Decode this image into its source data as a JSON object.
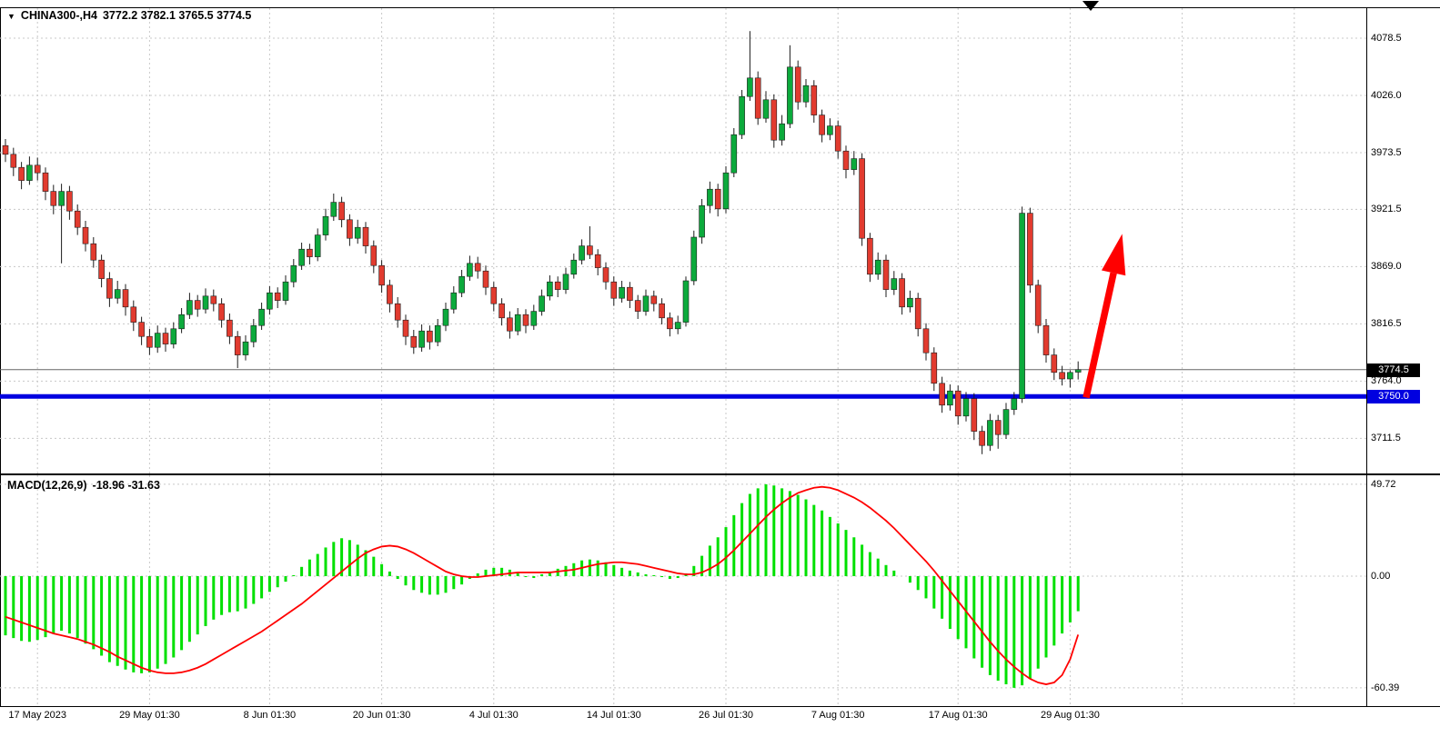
{
  "colors": {
    "background": "#ffffff",
    "grid": "#c8c8c8",
    "frame": "#000000",
    "candle_up": "#0caa3c",
    "candle_down": "#e23b2f",
    "wick": "#1c1c1c",
    "macd_histogram": "#00e000",
    "macd_signal": "#ff0000",
    "hline_blue": "#0000e0",
    "current_price_line": "#666666",
    "arrow": "#ff0000",
    "axis_text": "#000000",
    "current_badge_bg": "#000000",
    "line_badge_bg": "#0000e0"
  },
  "header": {
    "marker": "▼",
    "symbol_period": "CHINA300-,H4",
    "ohlc_text": "3772.2 3782.1 3765.5 3774.5"
  },
  "indicator_label": {
    "name": "MACD(12,26,9)",
    "values": "-18.96 -31.63"
  },
  "price_axis": {
    "current_badge": "3774.5",
    "line_badge": "3750.0"
  },
  "chart_data": {
    "type": "candlestick",
    "symbol": "CHINA300-",
    "timeframe": "H4",
    "current_ohlc": {
      "open": 3772.2,
      "high": 3782.1,
      "low": 3765.5,
      "close": 3774.5
    },
    "current_price": 3774.5,
    "support_line_price": 3750.0,
    "price_ticks": [
      4078.5,
      4026.0,
      3973.5,
      3921.5,
      3869.0,
      3816.5,
      3764.0,
      3711.5
    ],
    "grid_bars": [
      4,
      18,
      33,
      47,
      61,
      76,
      90,
      104,
      119,
      133,
      147,
      161
    ],
    "time_labels": [
      {
        "bar": 4,
        "text": "17 May 2023"
      },
      {
        "bar": 18,
        "text": "29 May 01:30"
      },
      {
        "bar": 33,
        "text": "8 Jun 01:30"
      },
      {
        "bar": 47,
        "text": "20 Jun 01:30"
      },
      {
        "bar": 61,
        "text": "4 Jul 01:30"
      },
      {
        "bar": 76,
        "text": "14 Jul 01:30"
      },
      {
        "bar": 90,
        "text": "26 Jul 01:30"
      },
      {
        "bar": 104,
        "text": "7 Aug 01:30"
      },
      {
        "bar": 119,
        "text": "17 Aug 01:30"
      },
      {
        "bar": 133,
        "text": "29 Aug 01:30"
      }
    ],
    "arrow": {
      "from": {
        "bar": 135,
        "price": 3749
      },
      "to": {
        "bar": 139.5,
        "price": 3899
      }
    },
    "candles": [
      [
        3980,
        3986,
        3965,
        3972
      ],
      [
        3972,
        3978,
        3952,
        3960
      ],
      [
        3960,
        3965,
        3940,
        3948
      ],
      [
        3948,
        3970,
        3944,
        3962
      ],
      [
        3962,
        3969,
        3948,
        3955
      ],
      [
        3955,
        3960,
        3930,
        3938
      ],
      [
        3938,
        3944,
        3917,
        3925
      ],
      [
        3925,
        3945,
        3872,
        3938
      ],
      [
        3938,
        3943,
        3912,
        3920
      ],
      [
        3920,
        3926,
        3898,
        3905
      ],
      [
        3905,
        3911,
        3883,
        3890
      ],
      [
        3890,
        3896,
        3868,
        3875
      ],
      [
        3875,
        3880,
        3850,
        3858
      ],
      [
        3858,
        3864,
        3832,
        3840
      ],
      [
        3840,
        3856,
        3835,
        3848
      ],
      [
        3848,
        3853,
        3824,
        3832
      ],
      [
        3832,
        3838,
        3810,
        3818
      ],
      [
        3818,
        3823,
        3797,
        3805
      ],
      [
        3805,
        3812,
        3788,
        3795
      ],
      [
        3795,
        3815,
        3790,
        3808
      ],
      [
        3808,
        3813,
        3791,
        3798
      ],
      [
        3798,
        3818,
        3794,
        3812
      ],
      [
        3812,
        3831,
        3808,
        3825
      ],
      [
        3825,
        3845,
        3821,
        3838
      ],
      [
        3838,
        3843,
        3823,
        3830
      ],
      [
        3830,
        3849,
        3826,
        3842
      ],
      [
        3842,
        3848,
        3828,
        3835
      ],
      [
        3835,
        3840,
        3813,
        3820
      ],
      [
        3820,
        3826,
        3798,
        3805
      ],
      [
        3805,
        3810,
        3776,
        3788
      ],
      [
        3788,
        3806,
        3783,
        3800
      ],
      [
        3800,
        3821,
        3795,
        3815
      ],
      [
        3815,
        3836,
        3811,
        3830
      ],
      [
        3830,
        3851,
        3825,
        3845
      ],
      [
        3845,
        3850,
        3831,
        3838
      ],
      [
        3838,
        3861,
        3834,
        3855
      ],
      [
        3855,
        3876,
        3850,
        3870
      ],
      [
        3870,
        3891,
        3866,
        3885
      ],
      [
        3885,
        3890,
        3871,
        3878
      ],
      [
        3878,
        3904,
        3874,
        3898
      ],
      [
        3898,
        3922,
        3893,
        3915
      ],
      [
        3915,
        3936,
        3911,
        3928
      ],
      [
        3928,
        3933,
        3905,
        3912
      ],
      [
        3912,
        3917,
        3888,
        3895
      ],
      [
        3895,
        3912,
        3890,
        3905
      ],
      [
        3905,
        3910,
        3881,
        3888
      ],
      [
        3888,
        3893,
        3863,
        3870
      ],
      [
        3870,
        3875,
        3845,
        3852
      ],
      [
        3852,
        3857,
        3827,
        3835
      ],
      [
        3835,
        3841,
        3813,
        3820
      ],
      [
        3820,
        3825,
        3797,
        3805
      ],
      [
        3805,
        3811,
        3789,
        3795
      ],
      [
        3795,
        3816,
        3791,
        3810
      ],
      [
        3810,
        3815,
        3793,
        3800
      ],
      [
        3800,
        3821,
        3796,
        3815
      ],
      [
        3815,
        3836,
        3810,
        3830
      ],
      [
        3830,
        3851,
        3826,
        3845
      ],
      [
        3845,
        3866,
        3841,
        3860
      ],
      [
        3860,
        3879,
        3856,
        3872
      ],
      [
        3872,
        3878,
        3858,
        3865
      ],
      [
        3865,
        3870,
        3843,
        3850
      ],
      [
        3850,
        3855,
        3828,
        3835
      ],
      [
        3835,
        3840,
        3815,
        3822
      ],
      [
        3822,
        3828,
        3803,
        3810
      ],
      [
        3810,
        3831,
        3806,
        3825
      ],
      [
        3825,
        3830,
        3808,
        3815
      ],
      [
        3815,
        3834,
        3811,
        3828
      ],
      [
        3828,
        3848,
        3824,
        3842
      ],
      [
        3842,
        3861,
        3838,
        3855
      ],
      [
        3855,
        3860,
        3841,
        3848
      ],
      [
        3848,
        3868,
        3844,
        3862
      ],
      [
        3862,
        3881,
        3858,
        3875
      ],
      [
        3875,
        3894,
        3871,
        3888
      ],
      [
        3888,
        3906,
        3876,
        3880
      ],
      [
        3880,
        3885,
        3861,
        3868
      ],
      [
        3868,
        3873,
        3848,
        3855
      ],
      [
        3855,
        3860,
        3833,
        3840
      ],
      [
        3840,
        3856,
        3836,
        3850
      ],
      [
        3850,
        3855,
        3831,
        3838
      ],
      [
        3838,
        3843,
        3821,
        3828
      ],
      [
        3828,
        3848,
        3824,
        3842
      ],
      [
        3842,
        3847,
        3828,
        3835
      ],
      [
        3835,
        3840,
        3816,
        3822
      ],
      [
        3822,
        3827,
        3805,
        3812
      ],
      [
        3812,
        3824,
        3807,
        3818
      ],
      [
        3818,
        3860,
        3814,
        3856
      ],
      [
        3856,
        3902,
        3852,
        3896
      ],
      [
        3896,
        3931,
        3890,
        3925
      ],
      [
        3925,
        3947,
        3918,
        3940
      ],
      [
        3940,
        3945,
        3915,
        3922
      ],
      [
        3922,
        3961,
        3918,
        3955
      ],
      [
        3955,
        3996,
        3951,
        3990
      ],
      [
        3990,
        4031,
        3986,
        4025
      ],
      [
        4025,
        4085,
        4021,
        4042
      ],
      [
        4042,
        4048,
        3999,
        4005
      ],
      [
        4005,
        4030,
        4001,
        4022
      ],
      [
        4022,
        4027,
        3978,
        3985
      ],
      [
        3985,
        4008,
        3980,
        4000
      ],
      [
        4000,
        4072,
        3996,
        4052
      ],
      [
        4052,
        4058,
        4013,
        4020
      ],
      [
        4020,
        4041,
        4015,
        4035
      ],
      [
        4035,
        4040,
        4001,
        4008
      ],
      [
        4008,
        4013,
        3983,
        3990
      ],
      [
        3990,
        4005,
        3985,
        3998
      ],
      [
        3998,
        4003,
        3968,
        3975
      ],
      [
        3975,
        3980,
        3950,
        3958
      ],
      [
        3958,
        3975,
        3953,
        3968
      ],
      [
        3968,
        3973,
        3888,
        3895
      ],
      [
        3895,
        3900,
        3855,
        3862
      ],
      [
        3862,
        3882,
        3857,
        3875
      ],
      [
        3875,
        3880,
        3841,
        3848
      ],
      [
        3848,
        3865,
        3843,
        3858
      ],
      [
        3858,
        3863,
        3825,
        3832
      ],
      [
        3832,
        3847,
        3827,
        3840
      ],
      [
        3840,
        3845,
        3805,
        3812
      ],
      [
        3812,
        3817,
        3783,
        3790
      ],
      [
        3790,
        3795,
        3755,
        3762
      ],
      [
        3762,
        3768,
        3735,
        3742
      ],
      [
        3742,
        3761,
        3737,
        3755
      ],
      [
        3755,
        3760,
        3724,
        3732
      ],
      [
        3732,
        3754,
        3727,
        3748
      ],
      [
        3748,
        3753,
        3710,
        3718
      ],
      [
        3718,
        3723,
        3697,
        3705
      ],
      [
        3705,
        3734,
        3700,
        3728
      ],
      [
        3728,
        3733,
        3702,
        3715
      ],
      [
        3715,
        3744,
        3711,
        3738
      ],
      [
        3738,
        3754,
        3733,
        3748
      ],
      [
        3748,
        3924,
        3744,
        3918
      ],
      [
        3918,
        3923,
        3845,
        3852
      ],
      [
        3852,
        3857,
        3808,
        3815
      ],
      [
        3815,
        3821,
        3781,
        3788
      ],
      [
        3788,
        3794,
        3765,
        3772
      ],
      [
        3772,
        3778,
        3760,
        3766
      ],
      [
        3766,
        3774,
        3758,
        3772
      ],
      [
        3772.2,
        3782.1,
        3765.5,
        3774.5
      ]
    ],
    "macd": {
      "params": "12,26,9",
      "ticks": [
        49.72,
        0,
        -60.39
      ],
      "current_macd": -18.96,
      "current_signal": -31.63,
      "histogram": [
        -32,
        -33.5,
        -35,
        -35.5,
        -34.5,
        -33,
        -31,
        -29.5,
        -31,
        -33.5,
        -36.5,
        -39.5,
        -43,
        -46.5,
        -48.5,
        -50.5,
        -52,
        -52.5,
        -52,
        -50,
        -47.5,
        -44,
        -40,
        -35.5,
        -31.5,
        -27,
        -23.5,
        -21,
        -19.5,
        -19,
        -17.5,
        -15,
        -12,
        -8.5,
        -6,
        -3,
        0.5,
        5,
        9,
        12,
        15.5,
        18.5,
        20.5,
        19.5,
        17,
        14,
        10.5,
        6.5,
        2.5,
        -1.5,
        -5,
        -7.5,
        -9,
        -10,
        -10,
        -9,
        -7,
        -4.5,
        -1.5,
        1.5,
        3.5,
        4.5,
        4.5,
        3.5,
        1.5,
        -0.5,
        -1,
        1,
        2.5,
        4,
        5.5,
        7,
        8.5,
        9,
        8.5,
        7.5,
        6,
        4.5,
        3,
        2,
        1,
        0.5,
        -0.5,
        -1.5,
        -1,
        1.5,
        5.5,
        11,
        16.5,
        21,
        26.5,
        33,
        39.5,
        44.5,
        47.5,
        49.72,
        49,
        47.5,
        46,
        44,
        41.5,
        38.5,
        35.5,
        32,
        28.5,
        25,
        21,
        17,
        13,
        9.5,
        6,
        3,
        0,
        -3.5,
        -7.5,
        -12,
        -17.5,
        -23,
        -28.5,
        -34,
        -39,
        -44.5,
        -49.5,
        -53.5,
        -56.5,
        -58.5,
        -60.39,
        -59,
        -55.5,
        -50,
        -44,
        -37.5,
        -31,
        -25,
        -18.96
      ],
      "signal": [
        -22,
        -23.5,
        -25,
        -26.5,
        -28,
        -29.5,
        -31,
        -32,
        -33,
        -34,
        -35.5,
        -37,
        -39,
        -41,
        -43.5,
        -45.5,
        -47.5,
        -49.5,
        -51,
        -52,
        -52.5,
        -52.5,
        -52,
        -51,
        -49.5,
        -47.5,
        -45,
        -42.5,
        -40,
        -37.5,
        -35,
        -32.5,
        -30,
        -27,
        -24,
        -21,
        -18,
        -15,
        -11.5,
        -8,
        -4.5,
        -1,
        2.5,
        6,
        9.5,
        12.5,
        14.5,
        16,
        16.5,
        16,
        14.5,
        12.5,
        10,
        7.5,
        5,
        2.5,
        1,
        0,
        -0.5,
        -0.5,
        0,
        0.5,
        1,
        1.5,
        2,
        2,
        2,
        2,
        2,
        2.5,
        3,
        3.5,
        4.5,
        5.5,
        6.5,
        7,
        7.5,
        7.5,
        7,
        6.5,
        5.5,
        4.5,
        3.5,
        2.5,
        1.5,
        1,
        1,
        2,
        4,
        6.5,
        10,
        14,
        18.5,
        23,
        27.5,
        32,
        36,
        39.5,
        42.5,
        45,
        46.5,
        47.8,
        48.3,
        47.8,
        46.5,
        44.5,
        42.5,
        40,
        37,
        33.5,
        30,
        26,
        21.5,
        17,
        12.5,
        8,
        3,
        -2.5,
        -8,
        -13.5,
        -19,
        -24.5,
        -30,
        -35.5,
        -40.5,
        -45,
        -49,
        -52.5,
        -55.5,
        -57.5,
        -58.5,
        -57.5,
        -53.5,
        -45,
        -31.63
      ]
    }
  }
}
